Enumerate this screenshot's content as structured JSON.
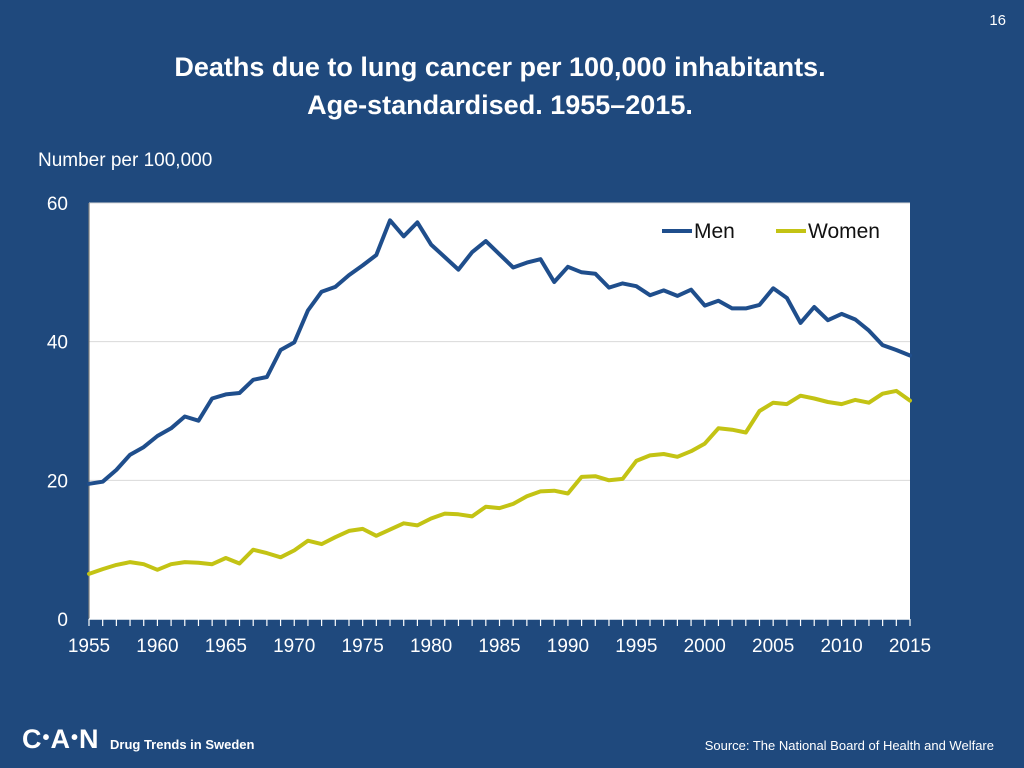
{
  "page_number": "16",
  "title_line1": "Deaths due to lung cancer per 100,000 inhabitants.",
  "title_line2": "Age-standardised. 1955–2015.",
  "footer": {
    "logo": [
      "C",
      "A",
      "N"
    ],
    "tagline": "Drug Trends in Sweden",
    "source": "Source: The National Board of Health and Welfare"
  },
  "chart_data": {
    "type": "line",
    "title": "Deaths due to lung cancer per 100,000 inhabitants. Age-standardised. 1955–2015.",
    "ylabel": "Number per 100,000",
    "xlabel": "",
    "xlim": [
      1955,
      2015
    ],
    "ylim": [
      0,
      60
    ],
    "yticks": [
      0,
      20,
      40,
      60
    ],
    "xticks": [
      1955,
      1960,
      1965,
      1970,
      1975,
      1980,
      1985,
      1990,
      1995,
      2000,
      2005,
      2010,
      2015
    ],
    "grid": true,
    "legend_position": "top-right",
    "x": [
      1955,
      1956,
      1957,
      1958,
      1959,
      1960,
      1961,
      1962,
      1963,
      1964,
      1965,
      1966,
      1967,
      1968,
      1969,
      1970,
      1971,
      1972,
      1973,
      1974,
      1975,
      1976,
      1977,
      1978,
      1979,
      1980,
      1981,
      1982,
      1983,
      1984,
      1985,
      1986,
      1987,
      1988,
      1989,
      1990,
      1991,
      1992,
      1993,
      1994,
      1995,
      1996,
      1997,
      1998,
      1999,
      2000,
      2001,
      2002,
      2003,
      2004,
      2005,
      2006,
      2007,
      2008,
      2009,
      2010,
      2011,
      2012,
      2013,
      2014,
      2015
    ],
    "series": [
      {
        "name": "Men",
        "color": "#1f4e8c",
        "values": [
          19.5,
          19.8,
          21.5,
          23.7,
          24.8,
          26.4,
          27.5,
          29.2,
          28.6,
          31.8,
          32.4,
          32.6,
          34.5,
          34.9,
          38.8,
          39.9,
          44.5,
          47.2,
          47.9,
          49.6,
          51.0,
          52.5,
          57.5,
          55.2,
          57.2,
          54.0,
          52.2,
          50.4,
          52.9,
          54.5,
          52.6,
          50.7,
          51.4,
          51.9,
          48.6,
          50.8,
          50.0,
          49.8,
          47.8,
          48.4,
          48.0,
          46.7,
          47.4,
          46.6,
          47.5,
          45.2,
          45.9,
          44.8,
          44.8,
          45.3,
          47.7,
          46.3,
          42.7,
          45.0,
          43.1,
          44.0,
          43.2,
          41.6,
          39.5,
          38.8,
          38.0
        ]
      },
      {
        "name": "Women",
        "color": "#c3c314",
        "values": [
          6.5,
          7.2,
          7.8,
          8.2,
          7.9,
          7.1,
          7.9,
          8.2,
          8.1,
          7.9,
          8.8,
          8.0,
          10.0,
          9.5,
          8.9,
          9.9,
          11.3,
          10.8,
          11.8,
          12.7,
          13.0,
          12.0,
          12.9,
          13.8,
          13.5,
          14.5,
          15.2,
          15.1,
          14.8,
          16.2,
          16.0,
          16.6,
          17.7,
          18.4,
          18.5,
          18.1,
          20.5,
          20.6,
          20.0,
          20.2,
          22.8,
          23.6,
          23.8,
          23.4,
          24.2,
          25.3,
          27.5,
          27.3,
          26.9,
          30.0,
          31.2,
          31.0,
          32.2,
          31.8,
          31.3,
          31.0,
          31.6,
          31.2,
          32.5,
          32.9,
          31.5
        ]
      }
    ]
  }
}
